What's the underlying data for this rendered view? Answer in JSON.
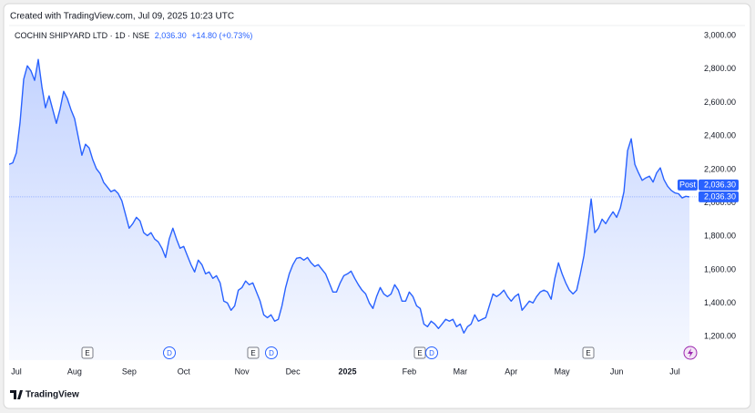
{
  "header": "Created with TradingView.com, Jul 09, 2025 10:23 UTC",
  "footer": "TradingView",
  "chart_data": {
    "type": "area",
    "series": [
      {
        "name": "COCHIN SHIPYARD LTD · 1D · NSE",
        "color": "#2962ff",
        "values": [
          2231,
          2240,
          2300,
          2480,
          2740,
          2820,
          2790,
          2733,
          2858,
          2695,
          2569,
          2640,
          2558,
          2476,
          2560,
          2667,
          2624,
          2558,
          2504,
          2395,
          2285,
          2351,
          2329,
          2258,
          2204,
          2176,
          2122,
          2095,
          2067,
          2078,
          2056,
          2013,
          1931,
          1849,
          1876,
          1914,
          1892,
          1822,
          1805,
          1822,
          1784,
          1767,
          1729,
          1674,
          1784,
          1849,
          1784,
          1729,
          1740,
          1685,
          1631,
          1587,
          1658,
          1631,
          1576,
          1587,
          1549,
          1565,
          1522,
          1413,
          1402,
          1358,
          1385,
          1478,
          1494,
          1533,
          1511,
          1522,
          1467,
          1413,
          1331,
          1314,
          1331,
          1293,
          1304,
          1385,
          1494,
          1576,
          1631,
          1669,
          1674,
          1658,
          1674,
          1642,
          1620,
          1631,
          1603,
          1576,
          1522,
          1467,
          1467,
          1522,
          1565,
          1576,
          1592,
          1549,
          1511,
          1478,
          1456,
          1402,
          1369,
          1440,
          1494,
          1456,
          1440,
          1456,
          1511,
          1478,
          1413,
          1413,
          1467,
          1440,
          1385,
          1369,
          1276,
          1260,
          1293,
          1276,
          1249,
          1276,
          1304,
          1293,
          1304,
          1260,
          1276,
          1222,
          1260,
          1276,
          1331,
          1293,
          1304,
          1314,
          1385,
          1456,
          1440,
          1456,
          1478,
          1440,
          1413,
          1440,
          1456,
          1358,
          1385,
          1413,
          1402,
          1440,
          1467,
          1478,
          1467,
          1424,
          1549,
          1642,
          1576,
          1522,
          1478,
          1456,
          1478,
          1576,
          1685,
          1849,
          2024,
          1822,
          1849,
          1903,
          1876,
          1914,
          1947,
          1914,
          1969,
          2067,
          2313,
          2384,
          2230,
          2180,
          2135,
          2150,
          2160,
          2125,
          2180,
          2210,
          2140,
          2100,
          2075,
          2060,
          2055,
          2030,
          2040,
          2036.3
        ]
      }
    ],
    "categories": [
      null,
      null,
      "Jul",
      null,
      null,
      null,
      null,
      null,
      null,
      null,
      null,
      null,
      null,
      null,
      null,
      null,
      null,
      null,
      "Aug",
      null,
      null,
      null,
      null,
      null,
      null,
      null,
      null,
      null,
      null,
      null,
      null,
      null,
      null,
      "Sep",
      null,
      null,
      null,
      null,
      null,
      null,
      null,
      null,
      null,
      null,
      null,
      null,
      null,
      null,
      "Oct",
      null,
      null,
      null,
      null,
      null,
      null,
      null,
      null,
      null,
      null,
      null,
      null,
      null,
      null,
      null,
      "Nov",
      null,
      null,
      null,
      null,
      null,
      null,
      null,
      null,
      null,
      null,
      null,
      null,
      null,
      "Dec",
      null,
      null,
      null,
      null,
      null,
      null,
      null,
      null,
      null,
      null,
      null,
      null,
      null,
      null,
      "2025",
      null,
      null,
      null,
      null,
      null,
      null,
      null,
      null,
      null,
      null,
      null,
      null,
      null,
      null,
      null,
      null,
      "Feb",
      null,
      null,
      null,
      null,
      null,
      null,
      null,
      null,
      null,
      null,
      null,
      null,
      null,
      "Mar",
      null,
      null,
      null,
      null,
      null,
      null,
      null,
      null,
      null,
      null,
      null,
      null,
      null,
      "Apr",
      null,
      null,
      null,
      null,
      null,
      null,
      null,
      null,
      null,
      null,
      null,
      null,
      null,
      "May",
      null,
      null,
      null,
      null,
      null,
      null,
      null,
      null,
      null,
      null,
      null,
      null,
      null,
      null,
      "Jun",
      null,
      null,
      null,
      null,
      null,
      null,
      null,
      null,
      null,
      null,
      null,
      null,
      null,
      null,
      null,
      "Jul",
      null,
      null,
      null,
      null
    ],
    "ylim": [
      1060,
      3050
    ],
    "yticks": [
      {
        "value": 1200,
        "label": "1,200.00"
      },
      {
        "value": 1400,
        "label": "1,400.00"
      },
      {
        "value": 1600,
        "label": "1,600.00"
      },
      {
        "value": 1800,
        "label": "1,800.00"
      },
      {
        "value": 2000,
        "label": "2,000.00"
      },
      {
        "value": 2200,
        "label": "2,200.00"
      },
      {
        "value": 2400,
        "label": "2,400.00"
      },
      {
        "value": 2600,
        "label": "2,600.00"
      },
      {
        "value": 2800,
        "label": "2,800.00"
      },
      {
        "value": 3000,
        "label": "3,000.00"
      }
    ],
    "grid": false,
    "legend_price": "2,036.30",
    "legend_change": "+14.80 (+0.73%)",
    "post_label": "Post",
    "post_price_label": "2,036.30",
    "last_price_label": "2,036.30",
    "events": [
      "E",
      "D",
      "E",
      "D",
      "E",
      "D",
      "E"
    ]
  }
}
